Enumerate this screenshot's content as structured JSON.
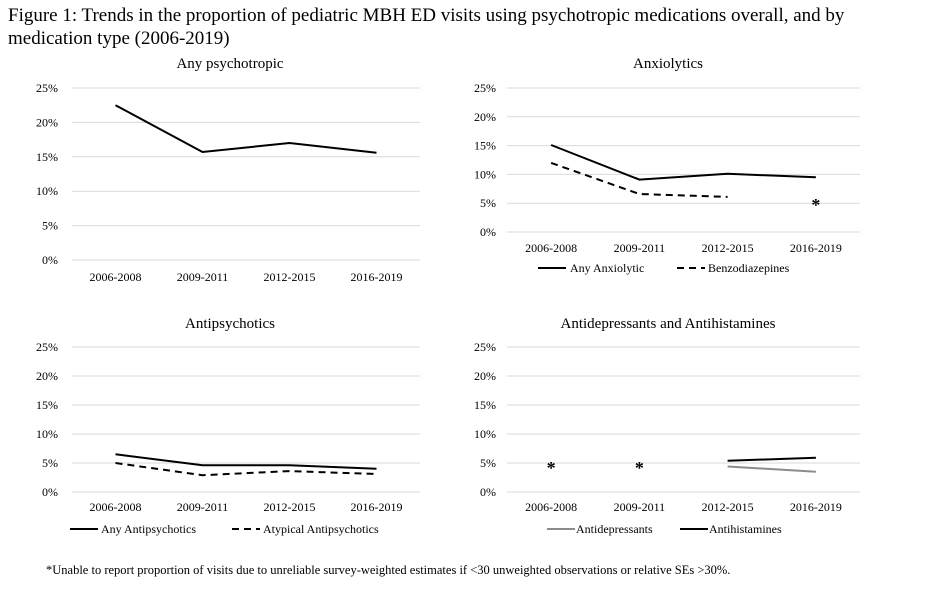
{
  "figure": {
    "title": "Figure 1: Trends in the proportion of pediatric MBH ED visits using psychotropic medications overall, and by medication type (2006-2019)",
    "footnote": "*Unable to report proportion of visits due to unreliable survey-weighted estimates if <30 unweighted observations or relative SEs >30%."
  },
  "colors": {
    "black": "#000000",
    "gray": "#8c8c8c",
    "grid": "#d9d9d9"
  },
  "chart_data": [
    {
      "type": "line",
      "title": "Any psychotropic",
      "categories": [
        "2006-2008",
        "2009-2011",
        "2012-2015",
        "2016-2019"
      ],
      "yticks": [
        "0%",
        "5%",
        "10%",
        "15%",
        "20%",
        "25%"
      ],
      "ylim": [
        0,
        25
      ],
      "grid": true,
      "legend": "none",
      "series": [
        {
          "name": "",
          "values": [
            22.5,
            15.7,
            17.0,
            15.6
          ],
          "style": "solid",
          "color": "#000000",
          "show_in_legend": false
        }
      ],
      "markers": []
    },
    {
      "type": "line",
      "title": "Anxiolytics",
      "categories": [
        "2006-2008",
        "2009-2011",
        "2012-2015",
        "2016-2019"
      ],
      "yticks": [
        "0%",
        "5%",
        "10%",
        "15%",
        "20%",
        "25%"
      ],
      "ylim": [
        0,
        25
      ],
      "grid": true,
      "legend": "bottom",
      "series": [
        {
          "name": "Any Anxiolytic",
          "values": [
            15.1,
            9.1,
            10.1,
            9.5
          ],
          "style": "solid",
          "color": "#000000",
          "show_in_legend": true
        },
        {
          "name": "Benzodiazepines",
          "values": [
            12.0,
            6.6,
            6.1,
            null
          ],
          "style": "dashed",
          "color": "#000000",
          "show_in_legend": true
        }
      ],
      "markers": [
        {
          "category": "2016-2019",
          "value": 5.0,
          "symbol": "*"
        }
      ]
    },
    {
      "type": "line",
      "title": "Antipsychotics",
      "categories": [
        "2006-2008",
        "2009-2011",
        "2012-2015",
        "2016-2019"
      ],
      "yticks": [
        "0%",
        "5%",
        "10%",
        "15%",
        "20%",
        "25%"
      ],
      "ylim": [
        0,
        25
      ],
      "grid": true,
      "legend": "bottom",
      "series": [
        {
          "name": "Any Antipsychotics",
          "values": [
            6.5,
            4.6,
            4.6,
            4.0
          ],
          "style": "solid",
          "color": "#000000",
          "show_in_legend": true
        },
        {
          "name": "Atypical Antipsychotics",
          "values": [
            5.0,
            2.9,
            3.6,
            3.1
          ],
          "style": "dashed",
          "color": "#000000",
          "show_in_legend": true
        }
      ],
      "markers": []
    },
    {
      "type": "line",
      "title": "Antidepressants and Antihistamines",
      "categories": [
        "2006-2008",
        "2009-2011",
        "2012-2015",
        "2016-2019"
      ],
      "yticks": [
        "0%",
        "5%",
        "10%",
        "15%",
        "20%",
        "25%"
      ],
      "ylim": [
        0,
        25
      ],
      "grid": true,
      "legend": "bottom",
      "series": [
        {
          "name": "Antidepressants",
          "values": [
            null,
            null,
            4.4,
            3.5
          ],
          "style": "solid",
          "color": "#8c8c8c",
          "show_in_legend": true
        },
        {
          "name": "Antihistamines",
          "values": [
            null,
            null,
            5.4,
            5.9
          ],
          "style": "solid",
          "color": "#000000",
          "show_in_legend": true
        }
      ],
      "markers": [
        {
          "category": "2006-2008",
          "value": 4.5,
          "symbol": "*"
        },
        {
          "category": "2009-2011",
          "value": 4.5,
          "symbol": "*"
        }
      ]
    }
  ]
}
